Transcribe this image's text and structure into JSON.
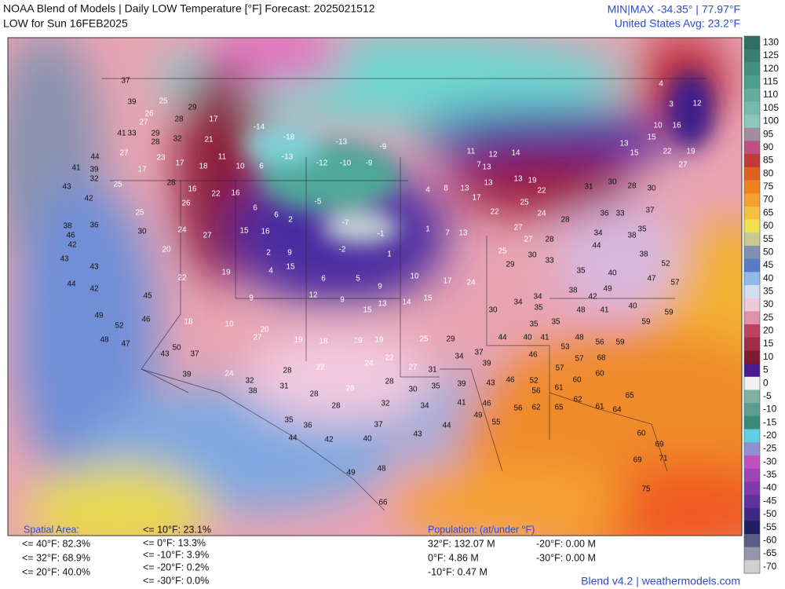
{
  "header": {
    "title": "NOAA Blend of Models | Daily LOW Temperature [°F] Forecast: 2025021512",
    "subtitle": "LOW for Sun 16FEB2025",
    "minmax": "MIN|MAX -34.35°  |  77.97°F",
    "average": "United States Avg: 23.2°F"
  },
  "colorbar": {
    "labels": [
      130,
      125,
      120,
      115,
      110,
      105,
      100,
      95,
      90,
      85,
      80,
      75,
      70,
      65,
      60,
      55,
      50,
      45,
      40,
      35,
      30,
      25,
      20,
      15,
      10,
      5,
      0,
      -5,
      -10,
      -15,
      -20,
      -25,
      -30,
      -35,
      -40,
      -45,
      -50,
      -55,
      -60,
      -65,
      -70
    ]
  },
  "map": {
    "station_labels": [
      37,
      39,
      25,
      26,
      27,
      28,
      29,
      17,
      41,
      33,
      29,
      32,
      28,
      21,
      44,
      27,
      23,
      17,
      18,
      11,
      10,
      6,
      -13,
      -12,
      -10,
      -9,
      -14,
      -18,
      -13,
      -9,
      41,
      39,
      17,
      32,
      25,
      28,
      16,
      22,
      16,
      6,
      6,
      2,
      -5,
      -7,
      -1,
      4,
      8,
      13,
      43,
      42,
      25,
      26,
      38,
      36,
      30,
      24,
      27,
      15,
      16,
      46,
      42,
      43,
      20,
      2,
      9,
      -2,
      1,
      1,
      7,
      13,
      43,
      44,
      42,
      22,
      19,
      4,
      15,
      6,
      5,
      9,
      10,
      17,
      24,
      45,
      49,
      46,
      52,
      18,
      10,
      20,
      9,
      12,
      9,
      15,
      13,
      14,
      15,
      48,
      47,
      50,
      37,
      43,
      27,
      19,
      18,
      19,
      19,
      25,
      29,
      39,
      24,
      32,
      28,
      22,
      24,
      22,
      27,
      31,
      34,
      37,
      39,
      38,
      31,
      28,
      26,
      28,
      30,
      35,
      39,
      43,
      46,
      52,
      28,
      32,
      34,
      41,
      46,
      56,
      61,
      35,
      36,
      37,
      43,
      44,
      49,
      55,
      44,
      42,
      40,
      48,
      49,
      66,
      56,
      62,
      65,
      62,
      61,
      64,
      65,
      60,
      69,
      71,
      69,
      75,
      57,
      60,
      60,
      57,
      68,
      53,
      46,
      48,
      56,
      59,
      59,
      59,
      30,
      34,
      35,
      48,
      41,
      40,
      35,
      35,
      44,
      40,
      41,
      10,
      16,
      3,
      12,
      4,
      13,
      15,
      19,
      15,
      22,
      27,
      30,
      28,
      30,
      31,
      36,
      33,
      37,
      35,
      34,
      38,
      44,
      38,
      52,
      57,
      33,
      35,
      40,
      38,
      42,
      34,
      49,
      47,
      11,
      12,
      14,
      7,
      13,
      13,
      17,
      22,
      13,
      19,
      22,
      25,
      24,
      28,
      27,
      27,
      28,
      25,
      30,
      29
    ]
  },
  "spatial_area": {
    "title": "Spatial Area:",
    "left": [
      "<= 40°F: 82.3%",
      "<= 32°F: 68.9%",
      "<= 20°F: 40.0%"
    ],
    "right": [
      "<= 10°F: 23.1%",
      "<= 0°F: 13.3%",
      "<= -10°F: 3.9%",
      "<= -20°F: 0.2%",
      "<= -30°F: 0.0%"
    ]
  },
  "population": {
    "title": "Population: (at/under °F)",
    "left": [
      "32°F: 132.07 M",
      "0°F: 4.86 M",
      "-10°F: 0.47 M"
    ],
    "right": [
      "-20°F: 0.00 M",
      "-30°F: 0.00 M"
    ]
  },
  "footer": "Blend v4.2 | weathermodels.com"
}
